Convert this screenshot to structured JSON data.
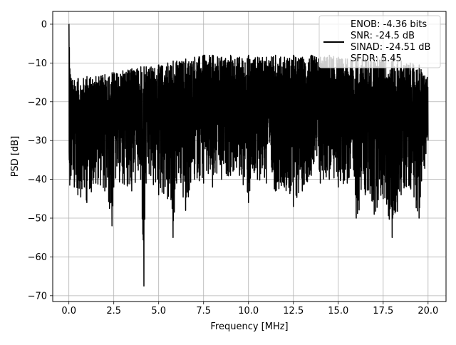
{
  "chart_data": {
    "type": "line",
    "title": "",
    "xlabel": "Frequency [MHz]",
    "ylabel": "PSD [dB]",
    "xlim": [
      -0.9,
      21.0
    ],
    "ylim": [
      -71.5,
      3.3
    ],
    "xticks": [
      0.0,
      2.5,
      5.0,
      7.5,
      10.0,
      12.5,
      15.0,
      17.5,
      20.0
    ],
    "xtick_labels": [
      "0.0",
      "2.5",
      "5.0",
      "7.5",
      "10.0",
      "12.5",
      "15.0",
      "17.5",
      "20.0"
    ],
    "yticks": [
      0,
      -10,
      -20,
      -30,
      -40,
      -50,
      -60,
      -70
    ],
    "ytick_labels": [
      "0",
      "−10",
      "−20",
      "−30",
      "−40",
      "−50",
      "−60",
      "−70"
    ],
    "grid": true,
    "legend_position": "top-right",
    "line_color": "#000000",
    "series": [
      {
        "legend_lines": [
          "ENOB: -4.36 bits",
          "SNR: -24.5 dB",
          "SINAD: -24.51 dB",
          "SFDR: 5.45"
        ],
        "x": [
          0.0,
          0.02,
          0.05,
          0.08,
          0.12,
          0.3,
          0.5,
          1.0,
          1.5,
          2.0,
          2.4,
          2.5,
          3.0,
          3.5,
          4.0,
          4.18,
          4.3,
          5.0,
          5.5,
          5.8,
          6.0,
          6.5,
          7.0,
          7.5,
          8.0,
          8.5,
          9.0,
          9.5,
          10.0,
          10.5,
          11.0,
          11.5,
          12.0,
          12.5,
          13.0,
          13.5,
          14.0,
          14.5,
          15.0,
          15.5,
          16.0,
          16.5,
          17.0,
          17.5,
          18.0,
          18.5,
          19.0,
          19.5,
          20.0
        ],
        "upper": [
          0.0,
          -6.0,
          -11.5,
          -13.0,
          -14.0,
          -14.5,
          -14.0,
          -13.5,
          -13.5,
          -13.0,
          -12.5,
          -12.5,
          -12.0,
          -11.5,
          -11.0,
          -11.0,
          -11.0,
          -10.5,
          -10.0,
          -9.5,
          -9.5,
          -9.0,
          -8.5,
          -8.0,
          -8.0,
          -8.5,
          -8.0,
          -8.5,
          -8.0,
          -8.5,
          -8.5,
          -8.0,
          -8.5,
          -8.0,
          -8.5,
          -8.0,
          -8.5,
          -8.0,
          -8.5,
          -9.0,
          -8.5,
          -9.0,
          -8.5,
          -8.0,
          -9.0,
          -9.5,
          -10.0,
          -10.5,
          -14.0
        ],
        "lower": [
          -23.0,
          -35.0,
          -41.5,
          -40.0,
          -39.0,
          -42.0,
          -44.0,
          -46.0,
          -41.0,
          -43.0,
          -52.0,
          -42.0,
          -41.0,
          -43.0,
          -40.0,
          -67.5,
          -41.0,
          -44.0,
          -45.0,
          -55.0,
          -41.0,
          -48.0,
          -40.0,
          -41.0,
          -42.0,
          -40.0,
          -39.0,
          -39.0,
          -46.0,
          -40.0,
          -41.0,
          -43.0,
          -42.0,
          -47.0,
          -43.0,
          -39.0,
          -41.0,
          -40.0,
          -42.0,
          -41.0,
          -50.0,
          -44.0,
          -49.0,
          -45.0,
          -55.0,
          -44.0,
          -42.0,
          -50.0,
          -30.0
        ]
      }
    ]
  }
}
